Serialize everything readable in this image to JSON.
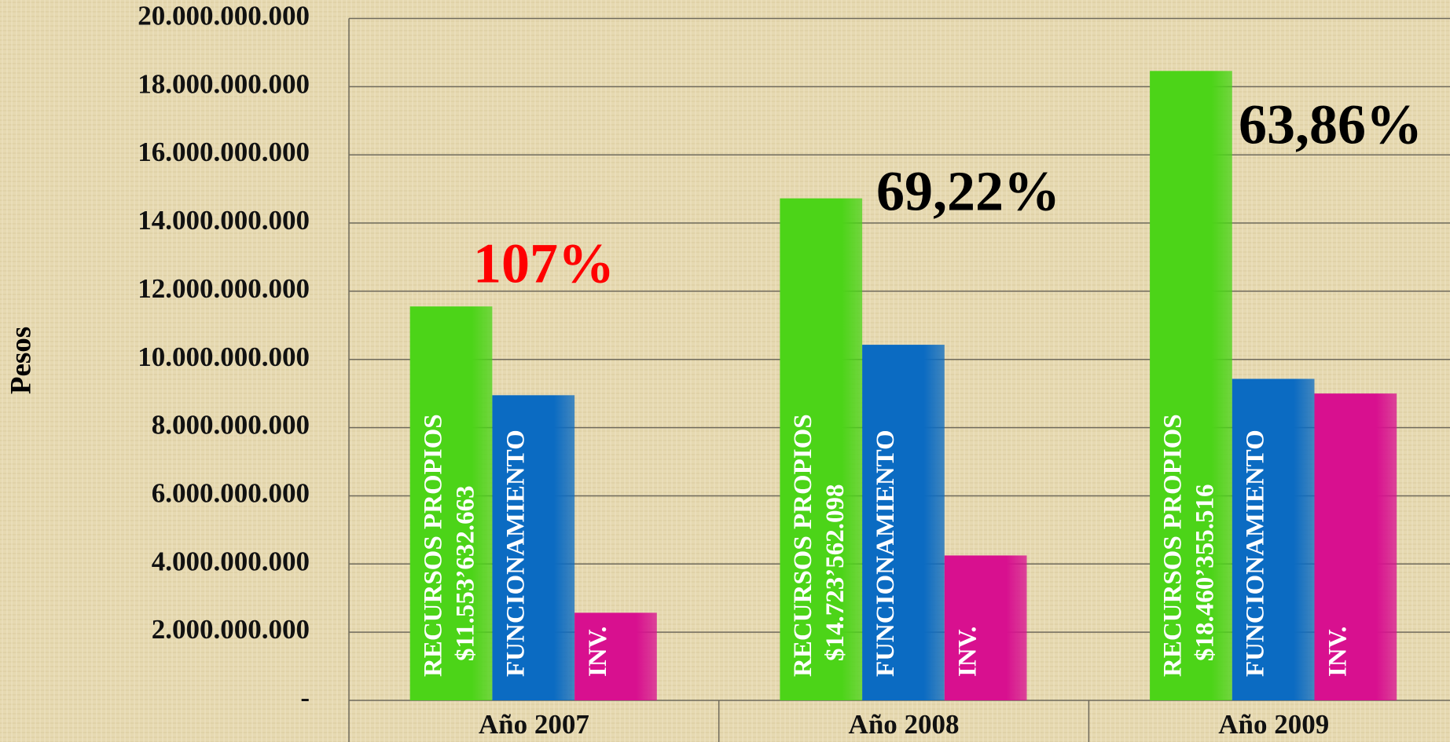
{
  "chart_data": {
    "type": "bar",
    "y_label": "Pesos",
    "categories": [
      "Año 2007",
      "Año 2008",
      "Año 2009"
    ],
    "series": [
      {
        "name": "RECURSOS PROPIOS",
        "color": "#4cd418",
        "values": [
          11553632663,
          14723562098,
          18460355516
        ],
        "value_labels": [
          "$11.553’632.663",
          "$14.723’562.098",
          "$18.460’355.516"
        ]
      },
      {
        "name": "FUNCIONAMIENTO",
        "color": "#0b6bc2",
        "values": [
          8950000000,
          10430000000,
          9430000000
        ]
      },
      {
        "name": "INV.",
        "color": "#d8108f",
        "values": [
          2570000000,
          4250000000,
          9000000000
        ]
      }
    ],
    "annotations": [
      {
        "text": "107%",
        "color": "#ff0000"
      },
      {
        "text": "69,22%",
        "color": "#000000"
      },
      {
        "text": "63,86%",
        "color": "#000000"
      }
    ],
    "ylim": [
      0,
      20000000000
    ],
    "yticks": [
      {
        "value": 0,
        "label": "-"
      },
      {
        "value": 2000000000,
        "label": "2.000.000.000"
      },
      {
        "value": 4000000000,
        "label": "4.000.000.000"
      },
      {
        "value": 6000000000,
        "label": "6.000.000.000"
      },
      {
        "value": 8000000000,
        "label": "8.000.000.000"
      },
      {
        "value": 10000000000,
        "label": "10.000.000.000"
      },
      {
        "value": 12000000000,
        "label": "12.000.000.000"
      },
      {
        "value": 14000000000,
        "label": "14.000.000.000"
      },
      {
        "value": 16000000000,
        "label": "16.000.000.000"
      },
      {
        "value": 18000000000,
        "label": "18.000.000.000"
      },
      {
        "value": 20000000000,
        "label": "20.000.000.000"
      }
    ],
    "grid": true
  }
}
